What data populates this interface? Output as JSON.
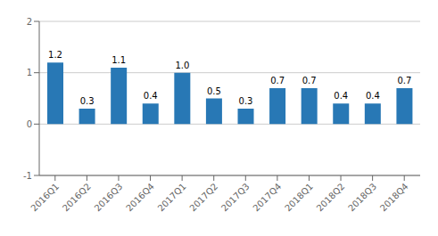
{
  "chart_data": {
    "type": "bar",
    "categories": [
      "2016Q1",
      "2016Q2",
      "2016Q3",
      "2016Q4",
      "2017Q1",
      "2017Q2",
      "2017Q3",
      "2017Q4",
      "2018Q1",
      "2018Q2",
      "2018Q3",
      "2018Q4"
    ],
    "values": [
      1.2,
      0.3,
      1.1,
      0.4,
      1.0,
      0.5,
      0.3,
      0.7,
      0.7,
      0.4,
      0.4,
      0.7
    ],
    "value_labels": [
      "1.2",
      "0.3",
      "1.1",
      "0.4",
      "1.0",
      "0.5",
      "0.3",
      "0.7",
      "0.7",
      "0.4",
      "0.4",
      "0.7"
    ],
    "color": "#2878b5",
    "ylim": [
      -1,
      2
    ],
    "yticks": [
      -1,
      0,
      1,
      2
    ],
    "grid": true,
    "data_labels": true
  }
}
